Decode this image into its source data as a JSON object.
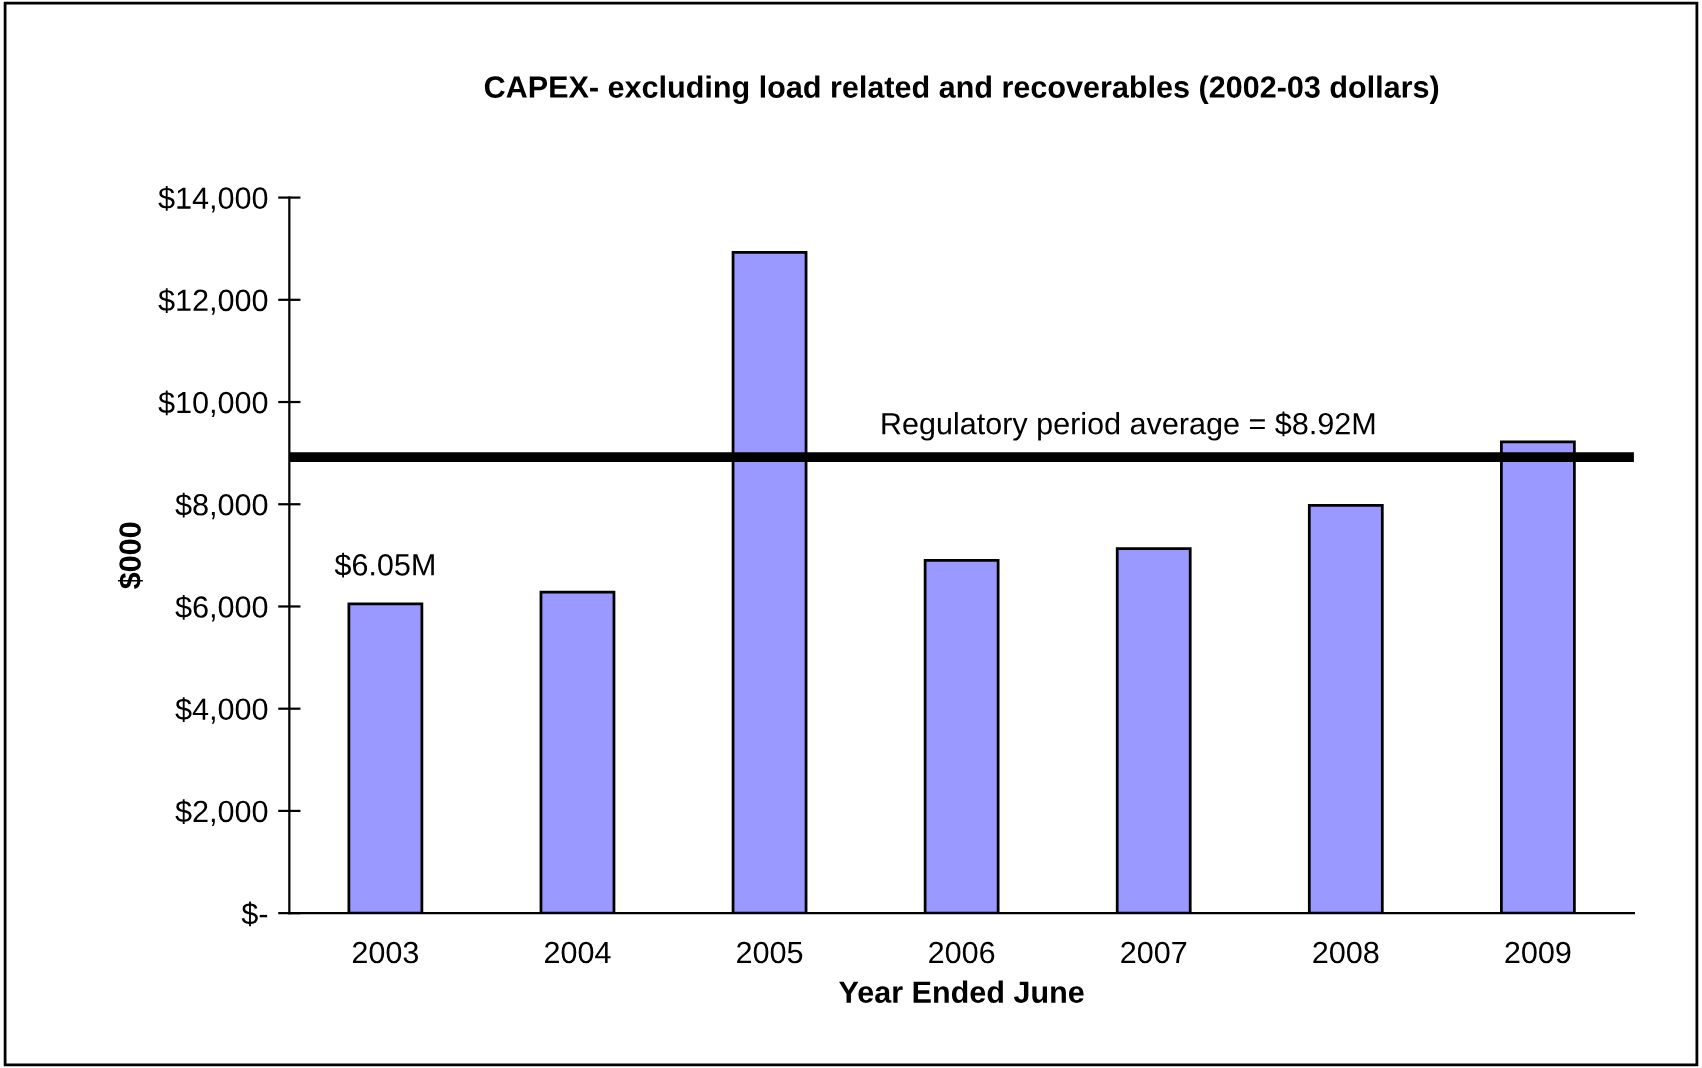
{
  "chart_data": {
    "type": "bar",
    "title": "CAPEX- excluding load related and recoverables (2002-03 dollars)",
    "xlabel": "Year Ended June",
    "ylabel": "$000",
    "categories": [
      "2003",
      "2004",
      "2005",
      "2006",
      "2007",
      "2008",
      "2009"
    ],
    "values": [
      6050,
      6280,
      12930,
      6900,
      7130,
      7980,
      9220
    ],
    "color": "#9999ff",
    "ylim": [
      0,
      14000
    ],
    "yticks": [
      {
        "value": 0,
        "label": "$-"
      },
      {
        "value": 2000,
        "label": "$2,000"
      },
      {
        "value": 4000,
        "label": "$4,000"
      },
      {
        "value": 6000,
        "label": "$6,000"
      },
      {
        "value": 8000,
        "label": "$8,000"
      },
      {
        "value": 10000,
        "label": "$10,000"
      },
      {
        "value": 12000,
        "label": "$12,000"
      },
      {
        "value": 14000,
        "label": "$14,000"
      }
    ],
    "ref_lines": [
      {
        "axis": "y",
        "value": 8920,
        "label": "Regulatory period average = $8.92M",
        "color": "#000000"
      }
    ],
    "annotations": [
      {
        "text": "$6.05M",
        "x": "2003",
        "y": 6050
      }
    ],
    "grid": false,
    "legend": false
  }
}
